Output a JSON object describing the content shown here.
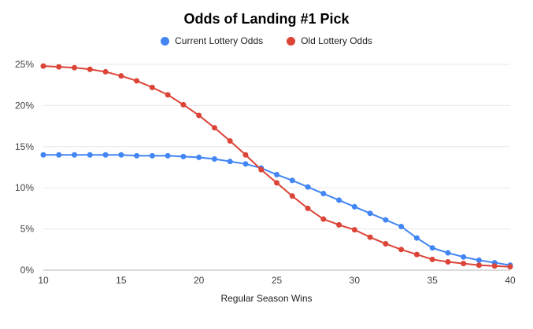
{
  "title": "Odds of Landing #1 Pick",
  "legend": {
    "items": [
      {
        "label": "Current Lottery Odds",
        "color": "#4285f4"
      },
      {
        "label": "Old Lottery Odds",
        "color": "#db4437"
      }
    ]
  },
  "xaxis_title": "Regular Season Wins",
  "colors": {
    "gridline": "#e8e8e8",
    "baseline": "#b7b7b7",
    "tick_text": "#424242"
  },
  "chart_data": {
    "type": "line",
    "title": "Odds of Landing #1 Pick",
    "xlabel": "Regular Season Wins",
    "ylabel": "",
    "xlim": [
      10,
      40
    ],
    "ylim": [
      0,
      25
    ],
    "x_ticks": [
      10,
      15,
      20,
      25,
      30,
      35,
      40
    ],
    "y_ticks": [
      0,
      5,
      10,
      15,
      20,
      25
    ],
    "y_tick_suffix": "%",
    "grid": true,
    "legend_position": "top",
    "x": [
      10,
      11,
      12,
      13,
      14,
      15,
      16,
      17,
      18,
      19,
      20,
      21,
      22,
      23,
      24,
      25,
      26,
      27,
      28,
      29,
      30,
      31,
      32,
      33,
      34,
      35,
      36,
      37,
      38,
      39,
      40
    ],
    "series": [
      {
        "name": "Current Lottery Odds",
        "color": "#4285f4",
        "values": [
          14,
          14,
          14,
          14,
          14,
          14,
          13.9,
          13.9,
          13.9,
          13.8,
          13.7,
          13.5,
          13.2,
          12.9,
          12.4,
          11.6,
          10.9,
          10.1,
          9.3,
          8.5,
          7.7,
          6.9,
          6.1,
          5.3,
          3.9,
          2.7,
          2.1,
          1.6,
          1.2,
          0.9,
          0.6
        ]
      },
      {
        "name": "Old Lottery Odds",
        "color": "#db4437",
        "values": [
          24.8,
          24.7,
          24.6,
          24.4,
          24.1,
          23.6,
          23,
          22.2,
          21.3,
          20.1,
          18.8,
          17.3,
          15.7,
          14,
          12.2,
          10.6,
          9,
          7.5,
          6.2,
          5.5,
          4.9,
          4,
          3.2,
          2.5,
          1.9,
          1.3,
          1,
          0.8,
          0.6,
          0.5,
          0.4
        ]
      }
    ]
  }
}
